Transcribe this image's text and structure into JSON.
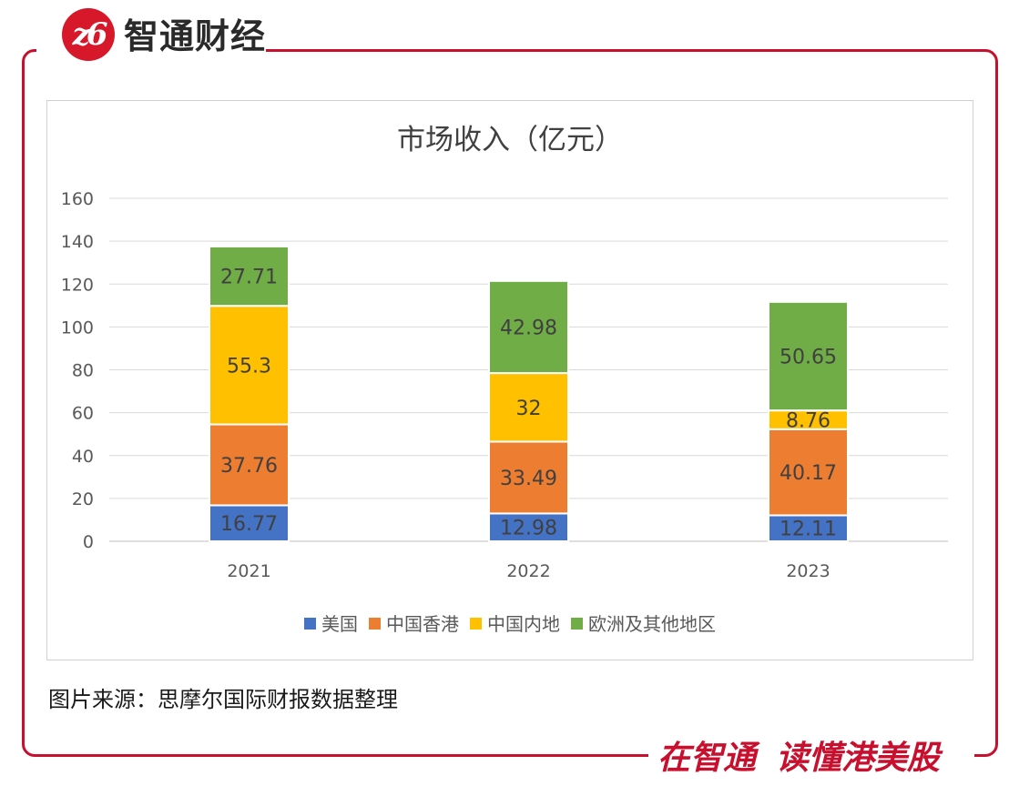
{
  "brand": {
    "logo_text": "z6",
    "name": "智通财经",
    "slogan_left": "在智通",
    "slogan_right": "读懂港美股"
  },
  "source_note": "图片来源：思摩尔国际财报数据整理",
  "colors": {
    "frame": "#c8102e",
    "美国": "#4472c4",
    "中国香港": "#ed7d31",
    "中国内地": "#ffc000",
    "欧洲及其他地区": "#70ad47"
  },
  "chart_data": {
    "type": "bar",
    "stacked": true,
    "title": "市场收入（亿元）",
    "xlabel": "",
    "ylabel": "",
    "categories": [
      "2021",
      "2022",
      "2023"
    ],
    "series": [
      {
        "name": "美国",
        "color": "#4472c4",
        "values": [
          16.77,
          12.98,
          12.11
        ],
        "labels": [
          "16.77",
          "12.98",
          "12.11"
        ]
      },
      {
        "name": "中国香港",
        "color": "#ed7d31",
        "values": [
          37.76,
          33.49,
          40.17
        ],
        "labels": [
          "37.76",
          "33.49",
          "40.17"
        ]
      },
      {
        "name": "中国内地",
        "color": "#ffc000",
        "values": [
          55.3,
          32,
          8.76
        ],
        "labels": [
          "55.3",
          "32",
          "8.76"
        ]
      },
      {
        "name": "欧洲及其他地区",
        "color": "#70ad47",
        "values": [
          27.71,
          42.98,
          50.65
        ],
        "labels": [
          "27.71",
          "42.98",
          "50.65"
        ]
      }
    ],
    "ylim": [
      0,
      160
    ],
    "yticks": [
      0,
      20,
      40,
      60,
      80,
      100,
      120,
      140,
      160
    ],
    "ytick_labels": [
      "0",
      "20",
      "40",
      "60",
      "80",
      "100",
      "120",
      "140",
      "160"
    ],
    "grid": true,
    "legend_position": "bottom"
  }
}
